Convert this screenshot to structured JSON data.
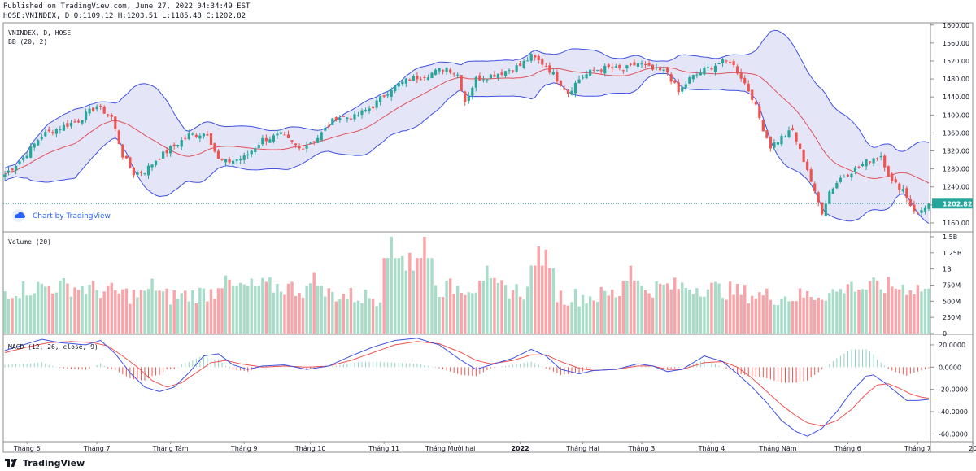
{
  "header": {
    "published": "Published on TradingView.com, June 27, 2022 04:34:49 EST",
    "ohlc": "HOSE:VNINDEX, D O:1109.12 H:1203.51 L:1185.48 C:1202.82"
  },
  "footer": {
    "brand": "TradingView"
  },
  "colors": {
    "up": "#26a69a",
    "down": "#ef5350",
    "bb_line": "#3f51e0",
    "bb_fill": "#dcdcf5",
    "basis": "#e0535b",
    "vol_up": "#a8dcc8",
    "vol_down": "#f8a4a9",
    "macd": "#3f51e0",
    "signal": "#ef5350",
    "price_line": "#26a69a"
  },
  "chart_data": [
    {
      "type": "candlestick",
      "pane": "price",
      "labels": [
        "VNINDEX, D, HOSE",
        "BB (20, 2)"
      ],
      "watermark": "Chart by TradingView",
      "yticks": [
        1160,
        1200,
        1240,
        1280,
        1320,
        1360,
        1400,
        1440,
        1480,
        1520,
        1560,
        1600
      ],
      "ylim": [
        1140,
        1605
      ],
      "last_price": "1202.82",
      "x_labels": [
        "Tháng 6",
        "Tháng 7",
        "Tháng Tám",
        "Tháng 9",
        "Tháng 10",
        "Tháng 11",
        "Tháng Mười hai",
        "2022",
        "Tháng Hai",
        "Tháng 3",
        "Tháng 4",
        "Tháng Năm",
        "Tháng 6",
        "Tháng 7",
        "20"
      ],
      "x_label_index": [
        6,
        25,
        45,
        65,
        83,
        103,
        121,
        140,
        157,
        173,
        192,
        210,
        229,
        248,
        263
      ],
      "close_anchors": [
        [
          0,
          1268
        ],
        [
          5,
          1305
        ],
        [
          10,
          1355
        ],
        [
          15,
          1372
        ],
        [
          20,
          1388
        ],
        [
          25,
          1420
        ],
        [
          29,
          1395
        ],
        [
          32,
          1310
        ],
        [
          35,
          1270
        ],
        [
          38,
          1275
        ],
        [
          41,
          1300
        ],
        [
          45,
          1325
        ],
        [
          50,
          1355
        ],
        [
          55,
          1360
        ],
        [
          58,
          1300
        ],
        [
          60,
          1295
        ],
        [
          65,
          1305
        ],
        [
          70,
          1345
        ],
        [
          75,
          1355
        ],
        [
          80,
          1325
        ],
        [
          85,
          1350
        ],
        [
          90,
          1395
        ],
        [
          95,
          1395
        ],
        [
          100,
          1420
        ],
        [
          105,
          1460
        ],
        [
          110,
          1480
        ],
        [
          115,
          1490
        ],
        [
          120,
          1505
        ],
        [
          123,
          1490
        ],
        [
          125,
          1430
        ],
        [
          128,
          1480
        ],
        [
          132,
          1488
        ],
        [
          135,
          1495
        ],
        [
          140,
          1510
        ],
        [
          143,
          1530
        ],
        [
          147,
          1510
        ],
        [
          150,
          1480
        ],
        [
          153,
          1450
        ],
        [
          156,
          1480
        ],
        [
          160,
          1500
        ],
        [
          164,
          1505
        ],
        [
          168,
          1500
        ],
        [
          172,
          1515
        ],
        [
          176,
          1500
        ],
        [
          180,
          1495
        ],
        [
          183,
          1450
        ],
        [
          186,
          1480
        ],
        [
          190,
          1500
        ],
        [
          194,
          1515
        ],
        [
          197,
          1520
        ],
        [
          200,
          1485
        ],
        [
          203,
          1440
        ],
        [
          206,
          1370
        ],
        [
          208,
          1330
        ],
        [
          211,
          1350
        ],
        [
          214,
          1365
        ],
        [
          216,
          1320
        ],
        [
          218,
          1280
        ],
        [
          220,
          1225
        ],
        [
          222,
          1185
        ],
        [
          224,
          1230
        ],
        [
          227,
          1260
        ],
        [
          230,
          1275
        ],
        [
          233,
          1290
        ],
        [
          236,
          1305
        ],
        [
          238,
          1310
        ],
        [
          241,
          1250
        ],
        [
          244,
          1235
        ],
        [
          246,
          1200
        ],
        [
          248,
          1180
        ],
        [
          251,
          1205
        ]
      ],
      "candles": 252
    },
    {
      "type": "bar",
      "pane": "volume",
      "label": "Volume (20)",
      "yticks": [
        "0",
        "250M",
        "500M",
        "750M",
        "1B",
        "1.25B",
        "1.5B"
      ],
      "ylim": [
        0,
        1.55
      ],
      "unit": "B",
      "peaks": [
        [
          105,
          1.5
        ],
        [
          114,
          1.5
        ],
        [
          108,
          1.2
        ],
        [
          110,
          1.25
        ],
        [
          147,
          1.3
        ],
        [
          145,
          1.35
        ],
        [
          170,
          1.05
        ],
        [
          131,
          1.05
        ],
        [
          84,
          0.95
        ],
        [
          60,
          0.9
        ],
        [
          40,
          0.85
        ],
        [
          230,
          0.8
        ],
        [
          252,
          0.55
        ]
      ],
      "baseline": 0.65
    },
    {
      "type": "line",
      "pane": "macd",
      "label": "MACD (12, 26, close, 9)",
      "yticks": [
        "20.0000",
        "0.0000",
        "-20.0000",
        "-40.0000",
        "-60.0000"
      ],
      "ylim": [
        -67,
        28
      ],
      "macd_anchors": [
        [
          0,
          15
        ],
        [
          5,
          20
        ],
        [
          10,
          25
        ],
        [
          15,
          22
        ],
        [
          22,
          20
        ],
        [
          26,
          24
        ],
        [
          30,
          12
        ],
        [
          34,
          -5
        ],
        [
          38,
          -18
        ],
        [
          42,
          -22
        ],
        [
          46,
          -18
        ],
        [
          50,
          -5
        ],
        [
          54,
          10
        ],
        [
          58,
          12
        ],
        [
          62,
          2
        ],
        [
          66,
          -2
        ],
        [
          70,
          1
        ],
        [
          76,
          2
        ],
        [
          82,
          -2
        ],
        [
          88,
          1
        ],
        [
          94,
          10
        ],
        [
          100,
          18
        ],
        [
          106,
          24
        ],
        [
          112,
          26
        ],
        [
          118,
          20
        ],
        [
          124,
          6
        ],
        [
          128,
          -2
        ],
        [
          132,
          2
        ],
        [
          138,
          8
        ],
        [
          143,
          16
        ],
        [
          147,
          10
        ],
        [
          151,
          -2
        ],
        [
          156,
          -6
        ],
        [
          160,
          -3
        ],
        [
          166,
          -2
        ],
        [
          172,
          3
        ],
        [
          176,
          1
        ],
        [
          180,
          -4
        ],
        [
          184,
          -2
        ],
        [
          190,
          10
        ],
        [
          195,
          5
        ],
        [
          199,
          -6
        ],
        [
          203,
          -18
        ],
        [
          207,
          -32
        ],
        [
          211,
          -48
        ],
        [
          215,
          -58
        ],
        [
          218,
          -62
        ],
        [
          222,
          -55
        ],
        [
          226,
          -40
        ],
        [
          230,
          -22
        ],
        [
          234,
          -8
        ],
        [
          236,
          -7
        ],
        [
          239,
          -14
        ],
        [
          242,
          -22
        ],
        [
          245,
          -30
        ],
        [
          248,
          -30
        ],
        [
          251,
          -29
        ]
      ],
      "signal_anchors": [
        [
          0,
          13
        ],
        [
          6,
          18
        ],
        [
          12,
          22
        ],
        [
          18,
          23
        ],
        [
          24,
          22
        ],
        [
          28,
          19
        ],
        [
          32,
          10
        ],
        [
          36,
          0
        ],
        [
          40,
          -12
        ],
        [
          44,
          -18
        ],
        [
          48,
          -14
        ],
        [
          52,
          -5
        ],
        [
          56,
          4
        ],
        [
          60,
          6
        ],
        [
          64,
          3
        ],
        [
          70,
          0
        ],
        [
          76,
          1
        ],
        [
          82,
          0
        ],
        [
          88,
          1
        ],
        [
          94,
          6
        ],
        [
          100,
          13
        ],
        [
          106,
          20
        ],
        [
          112,
          23
        ],
        [
          118,
          21
        ],
        [
          124,
          13
        ],
        [
          128,
          6
        ],
        [
          132,
          3
        ],
        [
          138,
          6
        ],
        [
          143,
          11
        ],
        [
          147,
          11
        ],
        [
          151,
          5
        ],
        [
          156,
          -1
        ],
        [
          160,
          -3
        ],
        [
          166,
          -2
        ],
        [
          172,
          1
        ],
        [
          176,
          1
        ],
        [
          180,
          -2
        ],
        [
          184,
          -2
        ],
        [
          190,
          4
        ],
        [
          195,
          5
        ],
        [
          199,
          0
        ],
        [
          203,
          -10
        ],
        [
          207,
          -22
        ],
        [
          211,
          -34
        ],
        [
          215,
          -44
        ],
        [
          218,
          -50
        ],
        [
          222,
          -53
        ],
        [
          226,
          -48
        ],
        [
          230,
          -38
        ],
        [
          234,
          -24
        ],
        [
          237,
          -16
        ],
        [
          240,
          -15
        ],
        [
          243,
          -19
        ],
        [
          246,
          -24
        ],
        [
          249,
          -27
        ],
        [
          251,
          -28
        ]
      ]
    }
  ]
}
